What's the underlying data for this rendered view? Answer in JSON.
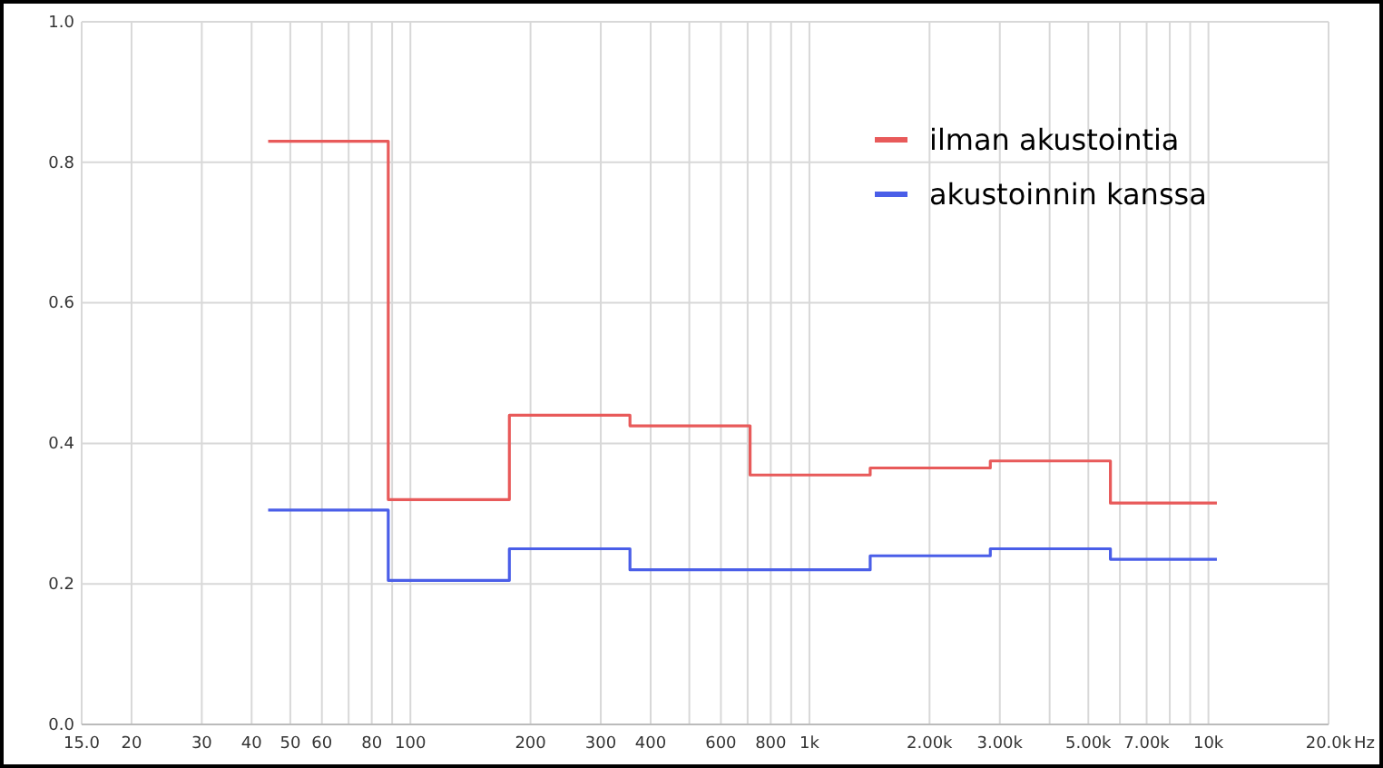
{
  "chart_data": {
    "type": "step",
    "xlim": [
      15,
      20000
    ],
    "ylim": [
      0,
      1
    ],
    "log": "x",
    "xticks": [
      {
        "value": 15,
        "label": "15.0"
      },
      20,
      30,
      40,
      50,
      60,
      {
        "value": 70,
        "label": null
      },
      80,
      {
        "value": 90,
        "label": null
      },
      100,
      200,
      300,
      400,
      {
        "value": 500,
        "label": null
      },
      600,
      {
        "value": 700,
        "label": null
      },
      800,
      {
        "value": 900,
        "label": null
      },
      {
        "value": 1000,
        "label": "1k"
      },
      {
        "value": 2000,
        "label": "2.00k"
      },
      {
        "value": 3000,
        "label": "3.00k"
      },
      {
        "value": 4000,
        "label": null
      },
      {
        "value": 5000,
        "label": "5.00k"
      },
      {
        "value": 6000,
        "label": null
      },
      {
        "value": 7000,
        "label": "7.00k"
      },
      {
        "value": 8000,
        "label": null
      },
      {
        "value": 9000,
        "label": null
      },
      {
        "value": 10000,
        "label": "10k"
      },
      {
        "value": 20000,
        "label": "20.0k"
      }
    ],
    "xlabel": "Hz",
    "yticks": [
      {
        "value": 0,
        "label": "0.0"
      },
      0.2,
      0.4,
      0.6,
      0.8,
      {
        "value": 1,
        "label": "1.0"
      }
    ],
    "grid": true,
    "legend": "top right",
    "x": [
      44,
      88,
      177,
      355,
      710,
      1420,
      2840,
      5680,
      10500
    ],
    "series": [
      {
        "name": "ilman akustointia",
        "color": "#e85a5a",
        "values": [
          0.83,
          0.32,
          0.44,
          0.425,
          0.355,
          0.365,
          0.375,
          0.315,
          0.315
        ]
      },
      {
        "name": "akustoinnin kanssa",
        "color": "#4a5ee8",
        "values": [
          0.305,
          0.205,
          0.25,
          0.22,
          0.22,
          0.24,
          0.25,
          0.235,
          0.235
        ]
      }
    ]
  }
}
